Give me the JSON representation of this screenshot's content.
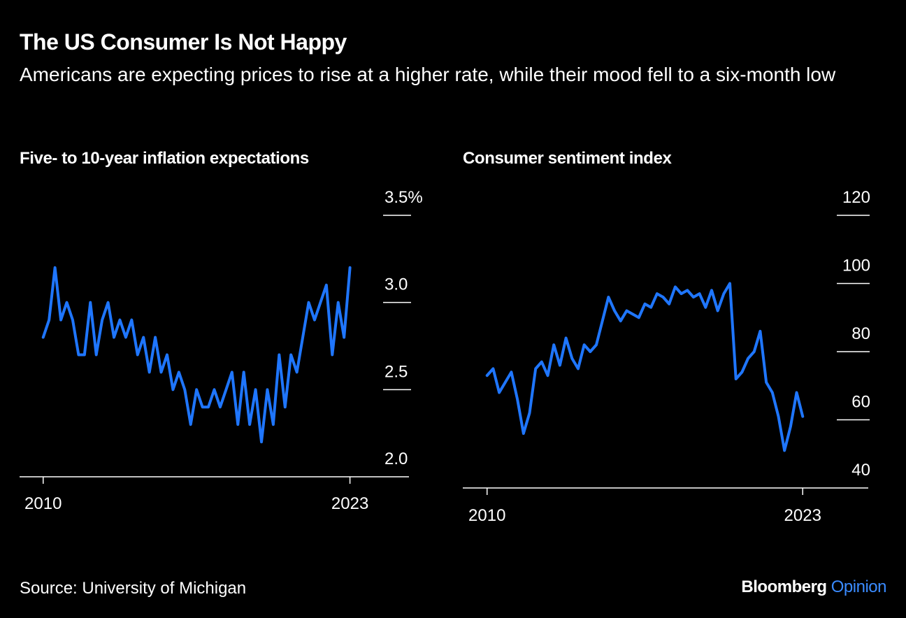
{
  "title": "The US Consumer Is Not Happy",
  "subtitle": "Americans are expecting prices to rise at a higher rate, while their mood fell to a six-month low",
  "source": "Source: University of Michigan",
  "brand": {
    "name": "Bloomberg",
    "section": "Opinion"
  },
  "chart_data": [
    {
      "type": "line",
      "title": "Five- to 10-year inflation expectations",
      "color": "#1f76ff",
      "x": [
        2010,
        2010.25,
        2010.5,
        2010.75,
        2011,
        2011.25,
        2011.5,
        2011.75,
        2012,
        2012.25,
        2012.5,
        2012.75,
        2013,
        2013.25,
        2013.5,
        2013.75,
        2014,
        2014.25,
        2014.5,
        2014.75,
        2015,
        2015.25,
        2015.5,
        2015.75,
        2016,
        2016.25,
        2016.5,
        2016.75,
        2017,
        2017.25,
        2017.5,
        2017.75,
        2018,
        2018.25,
        2018.5,
        2018.75,
        2019,
        2019.25,
        2019.5,
        2019.75,
        2020,
        2020.25,
        2020.5,
        2020.75,
        2021,
        2021.25,
        2021.5,
        2021.75,
        2022,
        2022.25,
        2022.5,
        2022.75,
        2023
      ],
      "values": [
        2.8,
        2.9,
        3.2,
        2.9,
        3.0,
        2.9,
        2.7,
        2.7,
        3.0,
        2.7,
        2.9,
        3.0,
        2.8,
        2.9,
        2.8,
        2.9,
        2.7,
        2.8,
        2.6,
        2.8,
        2.6,
        2.7,
        2.5,
        2.6,
        2.5,
        2.3,
        2.5,
        2.4,
        2.4,
        2.5,
        2.4,
        2.5,
        2.6,
        2.3,
        2.6,
        2.3,
        2.5,
        2.2,
        2.5,
        2.3,
        2.7,
        2.4,
        2.7,
        2.6,
        2.8,
        3.0,
        2.9,
        3.0,
        3.1,
        2.7,
        3.0,
        2.8,
        3.2
      ],
      "xlim": [
        2009,
        2025.5
      ],
      "xticks": [
        2010,
        2023
      ],
      "ylim": [
        2.0,
        3.5
      ],
      "yticks": [
        {
          "value": 2,
          "label": "2.0"
        },
        2.5,
        {
          "value": 3,
          "label": "3.0"
        },
        {
          "value": 3.5,
          "label": "3.5%"
        }
      ]
    },
    {
      "type": "line",
      "title": "Consumer sentiment index",
      "color": "#1f76ff",
      "x": [
        2010,
        2010.25,
        2010.5,
        2010.75,
        2011,
        2011.25,
        2011.5,
        2011.75,
        2012,
        2012.25,
        2012.5,
        2012.75,
        2013,
        2013.25,
        2013.5,
        2013.75,
        2014,
        2014.25,
        2014.5,
        2014.75,
        2015,
        2015.25,
        2015.5,
        2015.75,
        2016,
        2016.25,
        2016.5,
        2016.75,
        2017,
        2017.25,
        2017.5,
        2017.75,
        2018,
        2018.25,
        2018.5,
        2018.75,
        2019,
        2019.25,
        2019.5,
        2019.75,
        2020,
        2020.25,
        2020.5,
        2020.75,
        2021,
        2021.25,
        2021.5,
        2021.75,
        2022,
        2022.25,
        2022.5,
        2022.75,
        2023
      ],
      "values": [
        73,
        75,
        68,
        71,
        74,
        66,
        56,
        62,
        75,
        77,
        73,
        82,
        76,
        84,
        78,
        75,
        82,
        80,
        82,
        89,
        96,
        92,
        89,
        92,
        91,
        90,
        94,
        93,
        97,
        96,
        94,
        99,
        97,
        98,
        96,
        97,
        93,
        98,
        92,
        97,
        100,
        72,
        74,
        78,
        80,
        86,
        71,
        68,
        61,
        51,
        58,
        68,
        61
      ],
      "xlim": [
        2009,
        2025.7
      ],
      "xticks": [
        2010,
        2023
      ],
      "ylim": [
        40,
        120
      ],
      "yticks": [
        40,
        60,
        80,
        100,
        120
      ]
    }
  ]
}
